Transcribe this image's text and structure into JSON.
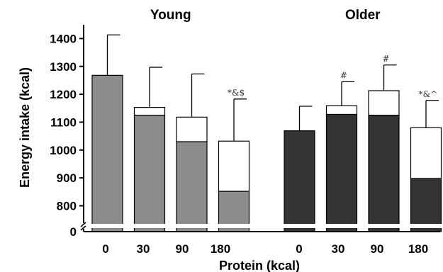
{
  "chart_data": {
    "type": "bar",
    "stacked": true,
    "ylabel": "Energy intake (kcal)",
    "xlabel": "Protein (kcal)",
    "ylim": [
      700,
      1450
    ],
    "axis_break": true,
    "y_ticks": [
      "1400",
      "1300",
      "1200",
      "1100",
      "1000",
      "900",
      "800"
    ],
    "y_zero_label": "0",
    "panels": [
      {
        "title": "Young",
        "color": "#8c8c8c",
        "bars": [
          {
            "category": "0",
            "base": 1268,
            "protein": 0,
            "error": 1413,
            "annotation": ""
          },
          {
            "category": "30",
            "base": 1125,
            "protein": 28,
            "error": 1297,
            "annotation": ""
          },
          {
            "category": "90",
            "base": 1030,
            "protein": 88,
            "error": 1273,
            "annotation": ""
          },
          {
            "category": "180",
            "base": 852,
            "protein": 180,
            "error": 1183,
            "annotation": "*&$"
          }
        ]
      },
      {
        "title": "Older",
        "color": "#333333",
        "bars": [
          {
            "category": "0",
            "base": 1069,
            "protein": 0,
            "error": 1157,
            "annotation": ""
          },
          {
            "category": "30",
            "base": 1128,
            "protein": 31,
            "error": 1245,
            "annotation": "#"
          },
          {
            "category": "90",
            "base": 1125,
            "protein": 88,
            "error": 1305,
            "annotation": "#"
          },
          {
            "category": "180",
            "base": 898,
            "protein": 182,
            "error": 1178,
            "annotation": "*&^"
          }
        ]
      }
    ]
  }
}
